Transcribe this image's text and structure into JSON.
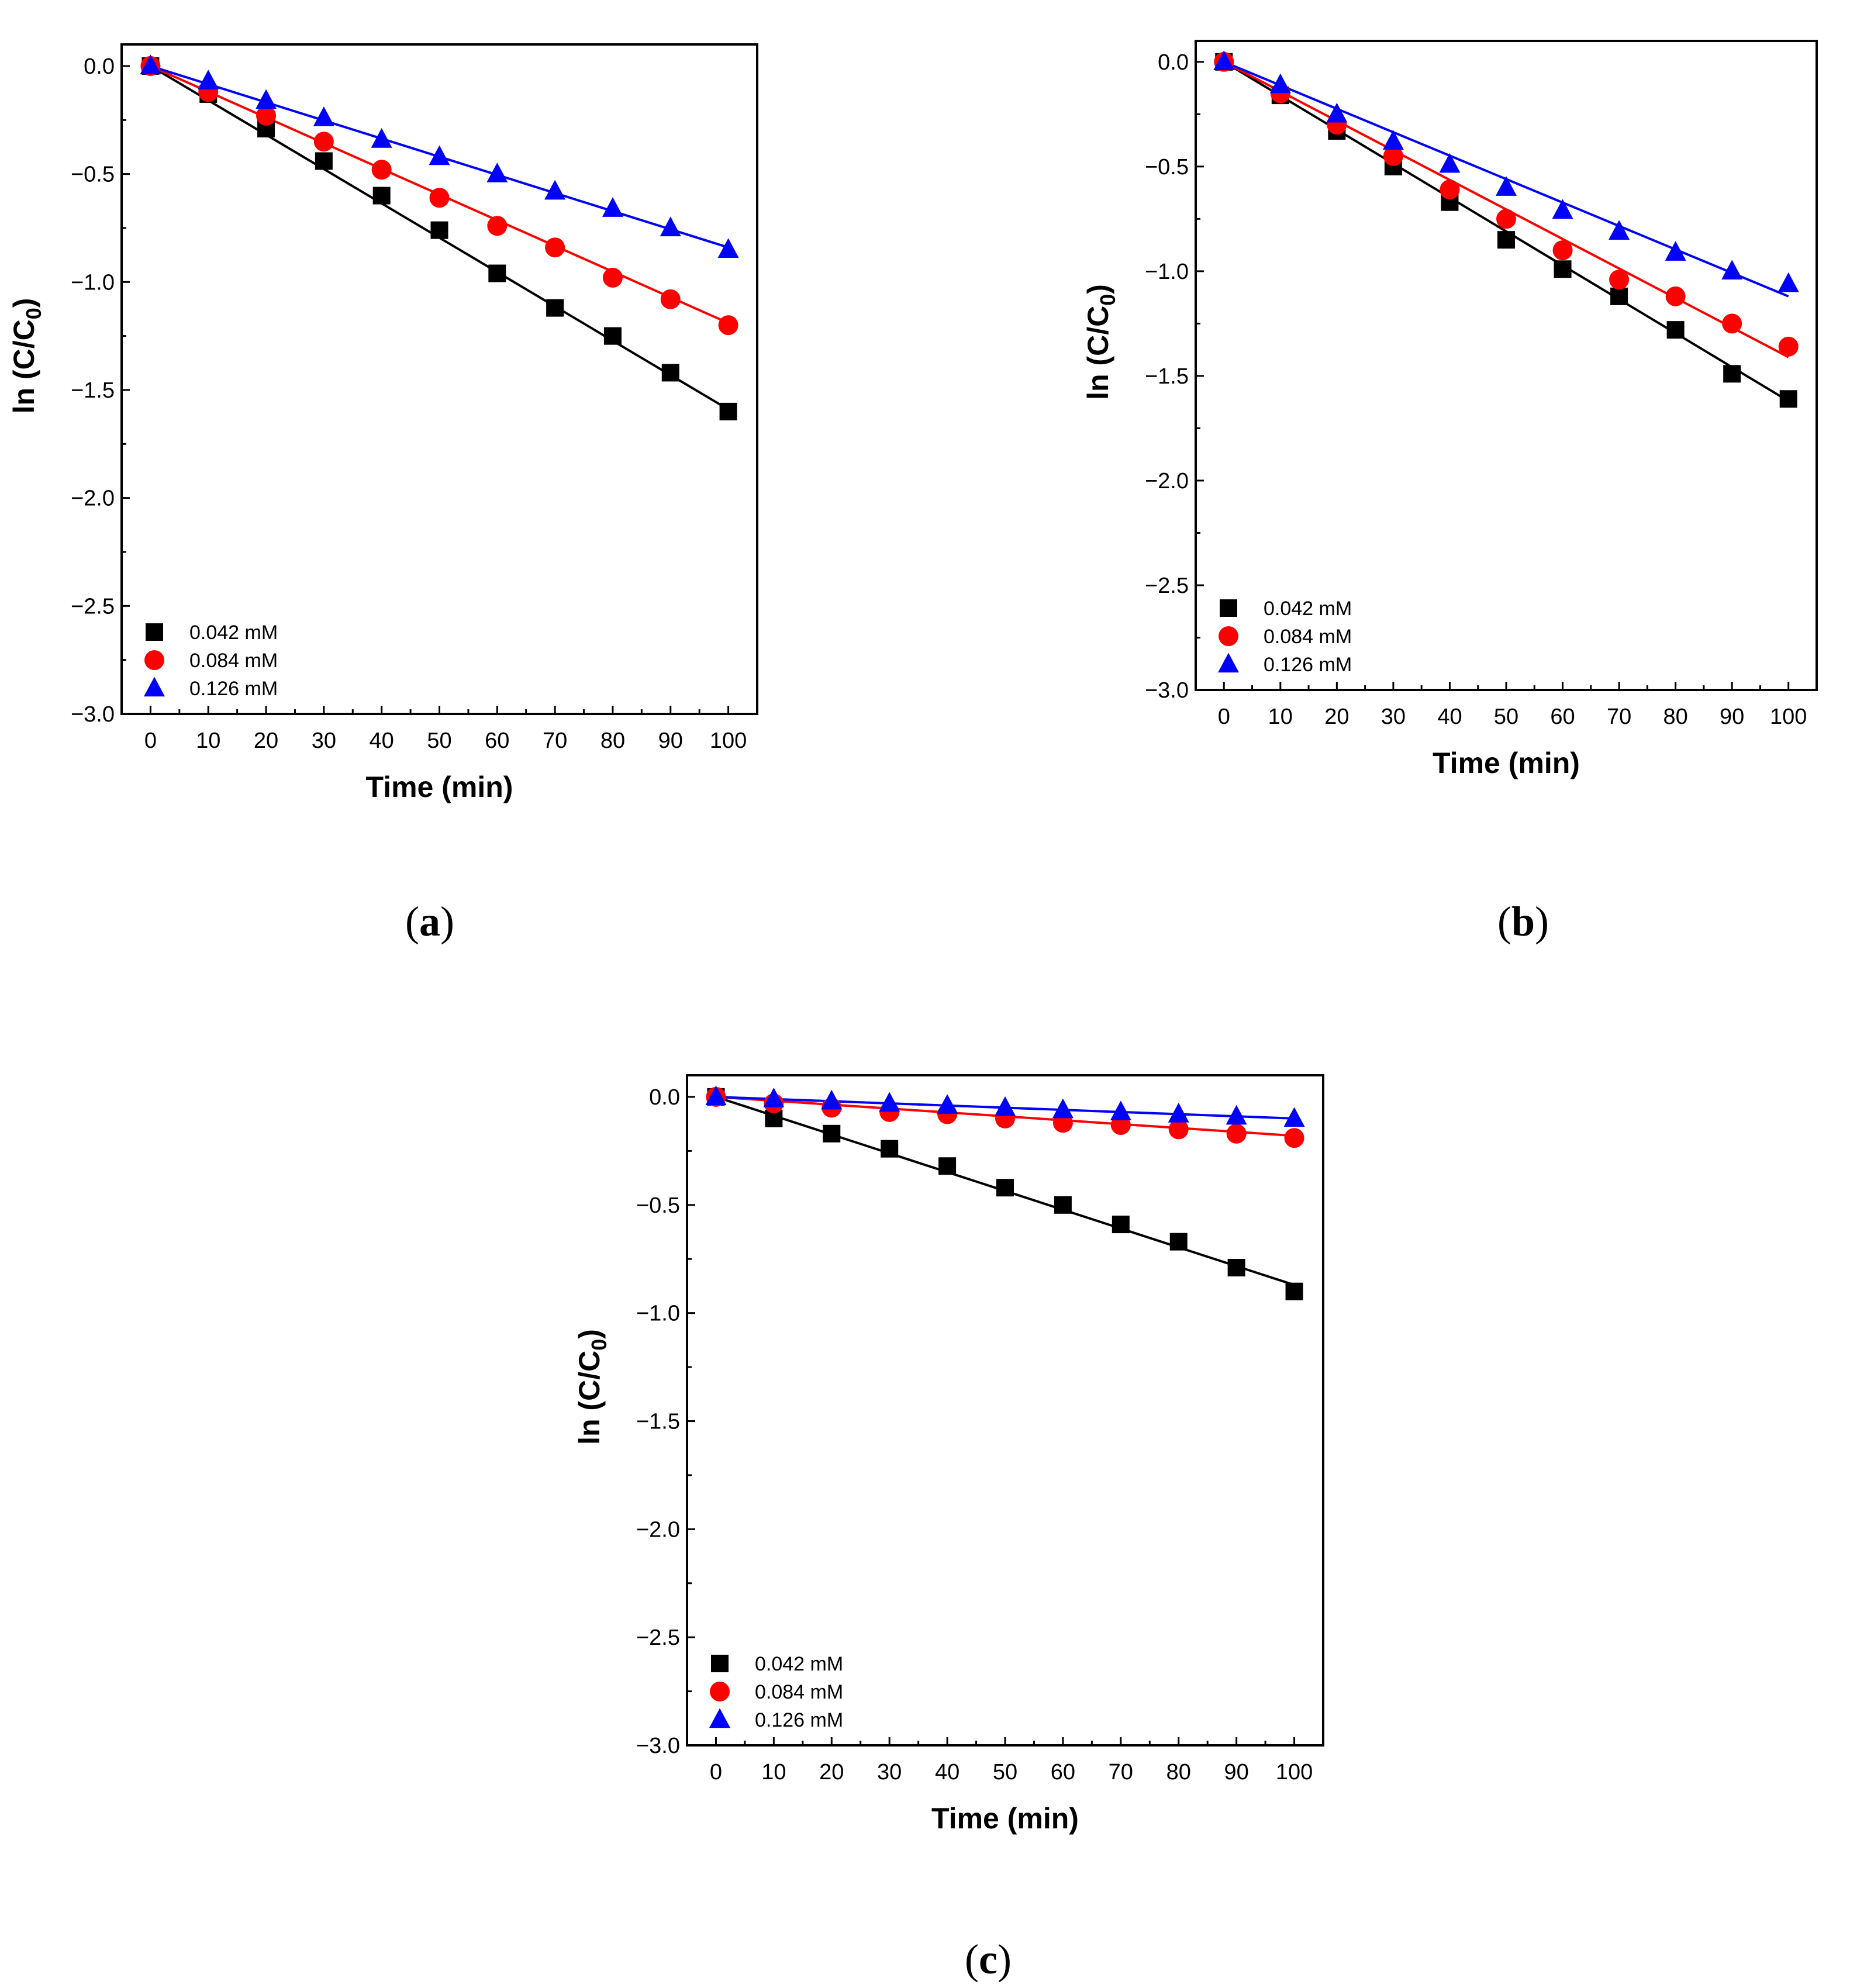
{
  "chart_data": [
    {
      "type": "scatter",
      "panel_label": "(a)",
      "caption_open": "(",
      "caption_letter": "a",
      "caption_close": ")",
      "xlabel": "Time (min)",
      "ylabel_text": "ln (C/C",
      "ylabel_sub": "0",
      "ylabel_close": ")",
      "xlim": [
        -5,
        105
      ],
      "ylim": [
        -3.0,
        0.1
      ],
      "xticks": [
        0,
        10,
        20,
        30,
        40,
        50,
        60,
        70,
        80,
        90,
        100
      ],
      "xtick_labels": [
        "0",
        "10",
        "20",
        "30",
        "40",
        "50",
        "60",
        "70",
        "80",
        "90",
        "100"
      ],
      "yticks": [
        0.0,
        -0.5,
        -1.0,
        -1.5,
        -2.0,
        -2.5,
        -3.0
      ],
      "ytick_labels": [
        "0.0",
        "−0.5",
        "−1.0",
        "−1.5",
        "−2.0",
        "−2.5",
        "−3.0"
      ],
      "x": [
        0,
        10,
        20,
        30,
        40,
        50,
        60,
        70,
        80,
        90,
        100
      ],
      "series": [
        {
          "name": "0.042 mM",
          "marker": "square",
          "color": "#000000",
          "values": [
            0.0,
            -0.13,
            -0.29,
            -0.44,
            -0.6,
            -0.76,
            -0.96,
            -1.12,
            -1.25,
            -1.42,
            -1.6
          ],
          "fit": [
            0.0,
            -1.59
          ]
        },
        {
          "name": "0.084 mM",
          "marker": "circle",
          "color": "#ff0000",
          "values": [
            0.0,
            -0.12,
            -0.23,
            -0.35,
            -0.48,
            -0.61,
            -0.74,
            -0.84,
            -0.98,
            -1.08,
            -1.2
          ],
          "fit": [
            0.0,
            -1.19
          ]
        },
        {
          "name": "0.126 mM",
          "marker": "triangle",
          "color": "#0000ff",
          "values": [
            0.0,
            -0.07,
            -0.16,
            -0.24,
            -0.34,
            -0.42,
            -0.5,
            -0.58,
            -0.66,
            -0.75,
            -0.85
          ],
          "fit": [
            0.0,
            -0.84
          ]
        }
      ]
    },
    {
      "type": "scatter",
      "panel_label": "(b)",
      "caption_open": "(",
      "caption_letter": "b",
      "caption_close": ")",
      "xlabel": "Time (min)",
      "ylabel_text": "ln (C/C",
      "ylabel_sub": "0",
      "ylabel_close": ")",
      "xlim": [
        -5,
        105
      ],
      "ylim": [
        -3.0,
        0.1
      ],
      "xticks": [
        0,
        10,
        20,
        30,
        40,
        50,
        60,
        70,
        80,
        90,
        100
      ],
      "xtick_labels": [
        "0",
        "10",
        "20",
        "30",
        "40",
        "50",
        "60",
        "70",
        "80",
        "90",
        "100"
      ],
      "yticks": [
        0.0,
        -0.5,
        -1.0,
        -1.5,
        -2.0,
        -2.5,
        -3.0
      ],
      "ytick_labels": [
        "0.0",
        "−0.5",
        "−1.0",
        "−1.5",
        "−2.0",
        "−2.5",
        "−3.0"
      ],
      "x": [
        0,
        10,
        20,
        30,
        40,
        50,
        60,
        70,
        80,
        90,
        100
      ],
      "series": [
        {
          "name": "0.042 mM",
          "marker": "square",
          "color": "#000000",
          "values": [
            0.0,
            -0.16,
            -0.33,
            -0.5,
            -0.67,
            -0.85,
            -0.99,
            -1.12,
            -1.28,
            -1.49,
            -1.61
          ],
          "fit": [
            0.0,
            -1.62
          ]
        },
        {
          "name": "0.084 mM",
          "marker": "circle",
          "color": "#ff0000",
          "values": [
            0.0,
            -0.15,
            -0.3,
            -0.45,
            -0.61,
            -0.75,
            -0.9,
            -1.04,
            -1.12,
            -1.25,
            -1.36
          ],
          "fit": [
            0.0,
            -1.41
          ]
        },
        {
          "name": "0.126 mM",
          "marker": "triangle",
          "color": "#0000ff",
          "values": [
            0.0,
            -0.11,
            -0.25,
            -0.38,
            -0.49,
            -0.6,
            -0.71,
            -0.81,
            -0.91,
            -1.0,
            -1.06
          ],
          "fit": [
            0.0,
            -1.12
          ]
        }
      ]
    },
    {
      "type": "scatter",
      "panel_label": "(c)",
      "caption_open": "(",
      "caption_letter": "c",
      "caption_close": ")",
      "xlabel": "Time (min)",
      "ylabel_text": "ln (C/C",
      "ylabel_sub": "0",
      "ylabel_close": ")",
      "xlim": [
        -5,
        105
      ],
      "ylim": [
        -3.0,
        0.1
      ],
      "xticks": [
        0,
        10,
        20,
        30,
        40,
        50,
        60,
        70,
        80,
        90,
        100
      ],
      "xtick_labels": [
        "0",
        "10",
        "20",
        "30",
        "40",
        "50",
        "60",
        "70",
        "80",
        "90",
        "100"
      ],
      "yticks": [
        0.0,
        -0.5,
        -1.0,
        -1.5,
        -2.0,
        -2.5,
        -3.0
      ],
      "ytick_labels": [
        "0.0",
        "−0.5",
        "−1.0",
        "−1.5",
        "−2.0",
        "−2.5",
        "−3.0"
      ],
      "x": [
        0,
        10,
        20,
        30,
        40,
        50,
        60,
        70,
        80,
        90,
        100
      ],
      "series": [
        {
          "name": "0.042 mM",
          "marker": "square",
          "color": "#000000",
          "values": [
            0.0,
            -0.1,
            -0.17,
            -0.24,
            -0.32,
            -0.42,
            -0.5,
            -0.59,
            -0.67,
            -0.79,
            -0.9
          ],
          "fit": [
            0.0,
            -0.87
          ]
        },
        {
          "name": "0.084 mM",
          "marker": "circle",
          "color": "#ff0000",
          "values": [
            0.0,
            -0.03,
            -0.05,
            -0.07,
            -0.08,
            -0.1,
            -0.12,
            -0.13,
            -0.15,
            -0.17,
            -0.19
          ],
          "fit": [
            0.0,
            -0.18
          ]
        },
        {
          "name": "0.126 mM",
          "marker": "triangle",
          "color": "#0000ff",
          "values": [
            0.0,
            -0.01,
            -0.02,
            -0.03,
            -0.04,
            -0.05,
            -0.06,
            -0.07,
            -0.08,
            -0.09,
            -0.1
          ],
          "fit": [
            0.0,
            -0.1
          ]
        }
      ]
    }
  ]
}
